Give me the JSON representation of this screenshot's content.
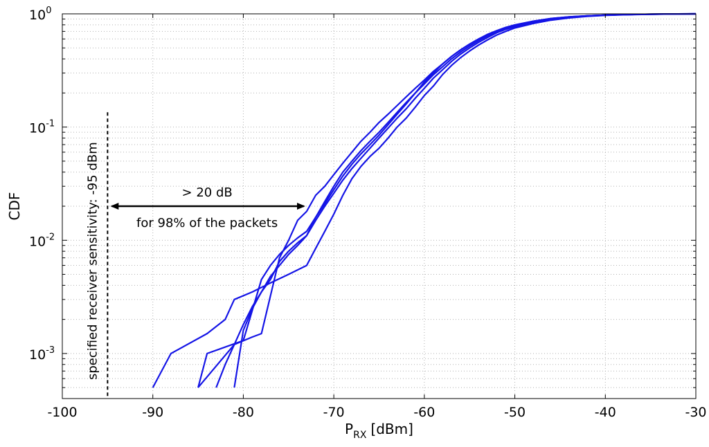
{
  "chart_data": {
    "type": "line",
    "xlabel_main": "P",
    "xlabel_sub": "RX",
    "xlabel_unit": "[dBm]",
    "ylabel": "CDF",
    "xlim": [
      -100,
      -30
    ],
    "ylim": [
      0.0004,
      1
    ],
    "yscale": "log",
    "grid": true,
    "x_ticks": [
      "-100",
      "-90",
      "-80",
      "-70",
      "-60",
      "-50",
      "-40",
      "-30"
    ],
    "y_ticks": [
      {
        "value": 0.001,
        "base": "10",
        "exp": "-3"
      },
      {
        "value": 0.01,
        "base": "10",
        "exp": "-2"
      },
      {
        "value": 0.1,
        "base": "10",
        "exp": "-1"
      },
      {
        "value": 1,
        "base": "10",
        "exp": "0"
      }
    ],
    "line_color": "#1414e6",
    "series": [
      {
        "x": [
          -90,
          -88,
          -84,
          -82,
          -81,
          -79,
          -77,
          -75,
          -73,
          -72,
          -71,
          -70,
          -69,
          -68,
          -67,
          -66,
          -65,
          -64,
          -63,
          -62,
          -61,
          -60,
          -59,
          -58,
          -57,
          -56,
          -55,
          -54,
          -53,
          -52,
          -51,
          -50,
          -48,
          -46,
          -44,
          -42,
          -40,
          -38,
          -35,
          -32,
          -30
        ],
        "y": [
          0.0005,
          0.001,
          0.0015,
          0.002,
          0.003,
          0.0035,
          0.0042,
          0.005,
          0.006,
          0.0085,
          0.012,
          0.017,
          0.025,
          0.035,
          0.045,
          0.055,
          0.065,
          0.08,
          0.1,
          0.12,
          0.15,
          0.19,
          0.23,
          0.29,
          0.35,
          0.41,
          0.47,
          0.53,
          0.59,
          0.65,
          0.7,
          0.75,
          0.82,
          0.88,
          0.92,
          0.95,
          0.97,
          0.98,
          0.99,
          0.997,
          1.0
        ]
      },
      {
        "x": [
          -85,
          -84,
          -80,
          -78,
          -77,
          -76,
          -75,
          -74,
          -73,
          -72,
          -71,
          -70,
          -69,
          -68,
          -67,
          -66,
          -65,
          -64,
          -63,
          -62,
          -61,
          -60,
          -59,
          -58,
          -57,
          -56,
          -55,
          -54,
          -53,
          -52,
          -51,
          -50,
          -48,
          -46,
          -44,
          -42,
          -40,
          -38,
          -35,
          -32,
          -30
        ],
        "y": [
          0.0005,
          0.001,
          0.0013,
          0.0045,
          0.006,
          0.0075,
          0.009,
          0.0105,
          0.012,
          0.016,
          0.021,
          0.028,
          0.037,
          0.047,
          0.058,
          0.07,
          0.085,
          0.105,
          0.13,
          0.16,
          0.2,
          0.25,
          0.3,
          0.36,
          0.42,
          0.48,
          0.54,
          0.6,
          0.66,
          0.71,
          0.76,
          0.8,
          0.86,
          0.91,
          0.94,
          0.96,
          0.975,
          0.985,
          0.993,
          0.998,
          1.0
        ]
      },
      {
        "x": [
          -83,
          -82,
          -81,
          -80,
          -79,
          -78,
          -77,
          -76,
          -75,
          -74,
          -73,
          -72,
          -71,
          -70,
          -69,
          -68,
          -67,
          -66,
          -65,
          -64,
          -63,
          -62,
          -61,
          -60,
          -59,
          -58,
          -57,
          -56,
          -55,
          -54,
          -53,
          -52,
          -51,
          -50,
          -48,
          -46,
          -44,
          -42,
          -40,
          -38,
          -35,
          -32,
          -30
        ],
        "y": [
          0.0005,
          0.0008,
          0.0012,
          0.0018,
          0.0026,
          0.0035,
          0.0048,
          0.006,
          0.0075,
          0.009,
          0.011,
          0.016,
          0.022,
          0.03,
          0.04,
          0.05,
          0.062,
          0.075,
          0.09,
          0.11,
          0.135,
          0.165,
          0.2,
          0.24,
          0.29,
          0.34,
          0.4,
          0.46,
          0.52,
          0.58,
          0.64,
          0.69,
          0.74,
          0.78,
          0.85,
          0.9,
          0.935,
          0.96,
          0.975,
          0.985,
          0.993,
          0.998,
          1.0
        ]
      },
      {
        "x": [
          -81,
          -80,
          -79,
          -78,
          -77,
          -76,
          -75,
          -74,
          -73,
          -72,
          -71,
          -70,
          -69,
          -68,
          -67,
          -66,
          -65,
          -64,
          -63,
          -62,
          -61,
          -60,
          -59,
          -58,
          -57,
          -56,
          -55,
          -54,
          -53,
          -52,
          -51,
          -50,
          -48,
          -46,
          -44,
          -42,
          -40,
          -38,
          -35,
          -32,
          -30
        ],
        "y": [
          0.0005,
          0.0016,
          0.0025,
          0.0035,
          0.0045,
          0.0065,
          0.008,
          0.0095,
          0.011,
          0.015,
          0.02,
          0.026,
          0.034,
          0.043,
          0.053,
          0.065,
          0.08,
          0.098,
          0.12,
          0.145,
          0.18,
          0.22,
          0.27,
          0.32,
          0.38,
          0.44,
          0.5,
          0.56,
          0.62,
          0.68,
          0.73,
          0.77,
          0.84,
          0.89,
          0.93,
          0.955,
          0.972,
          0.983,
          0.992,
          0.997,
          1.0
        ]
      },
      {
        "x": [
          -85,
          -81,
          -79,
          -78,
          -76,
          -75,
          -74,
          -73,
          -72,
          -71,
          -70,
          -69,
          -68,
          -67,
          -66,
          -65,
          -64,
          -63,
          -62,
          -61,
          -60,
          -59,
          -58,
          -57,
          -56,
          -55,
          -54,
          -53,
          -52,
          -51,
          -50,
          -48,
          -46,
          -44,
          -42,
          -40,
          -38,
          -35,
          -32,
          -30
        ],
        "y": [
          0.0005,
          0.0012,
          0.0014,
          0.0015,
          0.007,
          0.01,
          0.015,
          0.018,
          0.025,
          0.03,
          0.038,
          0.048,
          0.06,
          0.075,
          0.09,
          0.11,
          0.13,
          0.155,
          0.185,
          0.22,
          0.26,
          0.31,
          0.36,
          0.42,
          0.48,
          0.54,
          0.6,
          0.65,
          0.7,
          0.75,
          0.79,
          0.86,
          0.91,
          0.94,
          0.96,
          0.975,
          0.985,
          0.993,
          0.998,
          1.0
        ]
      }
    ],
    "annotations": {
      "sensitivity_label": "specified receiver sensitivity: -95 dBm",
      "sensitivity_x": -95,
      "arrow_label": "> 20 dB",
      "arrow_sublabel": "for 98% of the packets",
      "arrow_from": -95,
      "arrow_to": -73,
      "arrow_y": 0.02
    }
  }
}
